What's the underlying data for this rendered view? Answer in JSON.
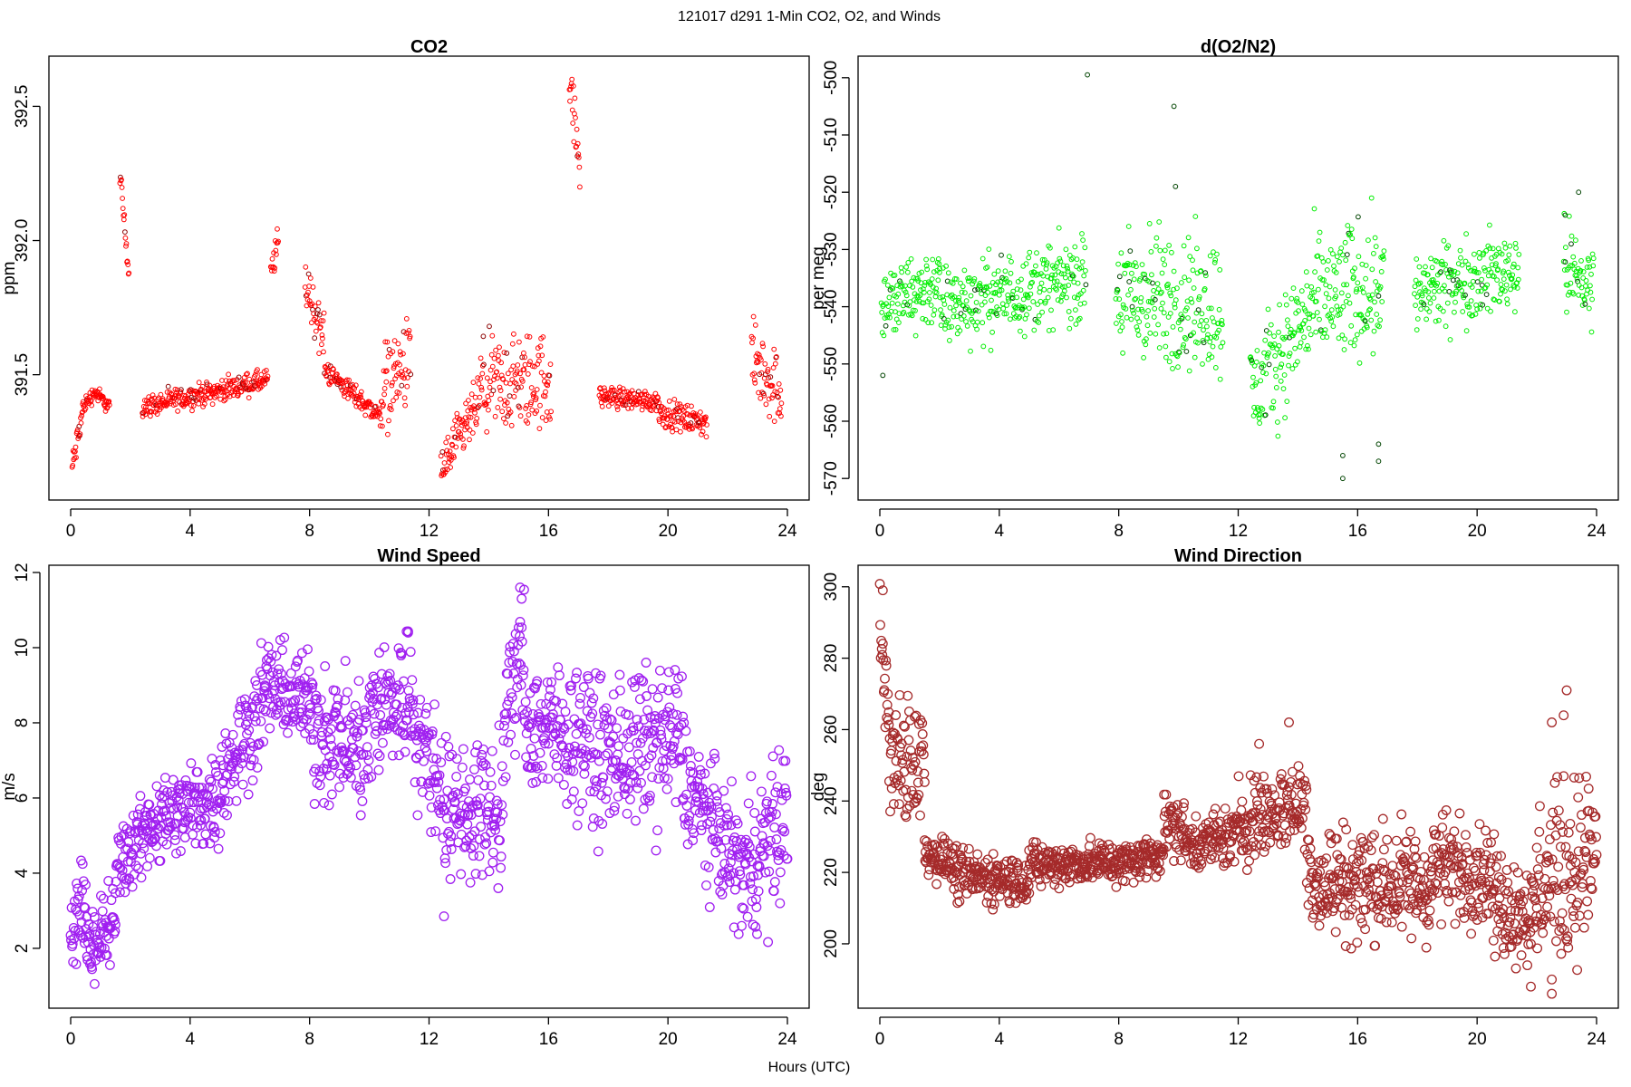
{
  "figure": {
    "title": "121017   d291   1-Min CO2, O2, and Winds",
    "xlabel": "Hours (UTC)"
  },
  "chart_data": [
    {
      "type": "scatter",
      "title": "CO2",
      "ylabel": "ppm",
      "xlim": [
        0,
        24
      ],
      "ylim": [
        391.06,
        392.66
      ],
      "x_ticks": [
        0,
        4,
        8,
        12,
        16,
        20,
        24
      ],
      "y_ticks": [
        391.5,
        392.0,
        392.5
      ],
      "y_tick_labels": [
        "391.5",
        "392.0",
        "392.5"
      ],
      "point_color": "#ff0000",
      "highlight_color": "#8b0000",
      "marker": "small-open-circle",
      "segments": [
        {
          "t0": 0.05,
          "t1": 0.4,
          "v0": 391.15,
          "v1": 391.36,
          "noise": 0.03
        },
        {
          "t0": 0.4,
          "t1": 0.85,
          "v0": 391.38,
          "v1": 391.44,
          "noise": 0.015
        },
        {
          "t0": 0.85,
          "t1": 1.3,
          "v0": 391.43,
          "v1": 391.38,
          "noise": 0.015
        },
        {
          "t0": 1.65,
          "t1": 1.95,
          "v0": 392.25,
          "v1": 391.87,
          "noise": 0.02
        },
        {
          "t0": 2.4,
          "t1": 6.6,
          "v0": 391.38,
          "v1": 391.48,
          "noise": 0.02
        },
        {
          "t0": 6.7,
          "t1": 6.95,
          "v0": 391.87,
          "v1": 392.0,
          "noise": 0.03
        },
        {
          "t0": 7.85,
          "t1": 8.5,
          "v0": 391.85,
          "v1": 391.62,
          "noise": 0.05
        },
        {
          "t0": 8.5,
          "t1": 10.4,
          "v0": 391.52,
          "v1": 391.34,
          "noise": 0.02
        },
        {
          "t0": 10.4,
          "t1": 11.4,
          "v0": 391.45,
          "v1": 391.55,
          "noise": 0.08
        },
        {
          "t0": 12.4,
          "t1": 13.7,
          "v0": 391.14,
          "v1": 391.4,
          "noise": 0.05
        },
        {
          "t0": 13.7,
          "t1": 16.1,
          "v0": 391.45,
          "v1": 391.48,
          "noise": 0.09
        },
        {
          "t0": 16.7,
          "t1": 17.05,
          "v0": 392.6,
          "v1": 392.27,
          "noise": 0.05
        },
        {
          "t0": 17.7,
          "t1": 19.7,
          "v0": 391.42,
          "v1": 391.4,
          "noise": 0.02
        },
        {
          "t0": 19.7,
          "t1": 21.3,
          "v0": 391.36,
          "v1": 391.32,
          "noise": 0.025
        },
        {
          "t0": 22.8,
          "t1": 23.8,
          "v0": 391.55,
          "v1": 391.44,
          "noise": 0.07
        }
      ]
    },
    {
      "type": "scatter",
      "title": "d(O2/N2)",
      "ylabel": "per meg",
      "xlim": [
        0,
        24
      ],
      "ylim": [
        -572.5,
        -497.5
      ],
      "x_ticks": [
        0,
        4,
        8,
        12,
        16,
        20,
        24
      ],
      "y_ticks": [
        -570,
        -560,
        -550,
        -540,
        -530,
        -520,
        -510,
        -500
      ],
      "y_tick_labels": [
        "-570",
        "-560",
        "-550",
        "-540",
        "-530",
        "-520",
        "-510",
        "-500"
      ],
      "point_color": "#00ee00",
      "highlight_color": "#004400",
      "marker": "small-open-circle",
      "segments": [
        {
          "t0": 0.05,
          "t1": 2.0,
          "v0": -540,
          "v1": -536,
          "noise": 3.5
        },
        {
          "t0": 2.0,
          "t1": 6.9,
          "v0": -540,
          "v1": -535,
          "noise": 3.5
        },
        {
          "t0": 7.9,
          "t1": 11.5,
          "v0": -538,
          "v1": -540,
          "noise": 6
        },
        {
          "t0": 12.4,
          "t1": 14.5,
          "v0": -556,
          "v1": -540,
          "noise": 5
        },
        {
          "t0": 14.5,
          "t1": 16.9,
          "v0": -540,
          "v1": -535,
          "noise": 6
        },
        {
          "t0": 17.9,
          "t1": 21.4,
          "v0": -538,
          "v1": -533,
          "noise": 3.5
        },
        {
          "t0": 22.9,
          "t1": 23.9,
          "v0": -533,
          "v1": -537,
          "noise": 4
        }
      ],
      "outliers": [
        [
          6.95,
          -499.5
        ],
        [
          9.85,
          -505
        ],
        [
          9.9,
          -519
        ],
        [
          15.5,
          -566
        ],
        [
          15.5,
          -570
        ],
        [
          16.7,
          -564
        ],
        [
          16.7,
          -567
        ],
        [
          22.95,
          -524
        ],
        [
          23.4,
          -520
        ],
        [
          0.1,
          -552
        ]
      ]
    },
    {
      "type": "scatter",
      "title": "Wind Speed",
      "ylabel": "m/s",
      "xlim": [
        0,
        24
      ],
      "ylim": [
        0.6,
        12.0
      ],
      "x_ticks": [
        0,
        4,
        8,
        12,
        16,
        20,
        24
      ],
      "y_ticks": [
        2,
        4,
        6,
        8,
        10,
        12
      ],
      "y_tick_labels": [
        "2",
        "4",
        "6",
        "8",
        "10",
        "12"
      ],
      "point_color": "#a020f0",
      "marker": "open-circle",
      "segments": [
        {
          "t0": 0.0,
          "t1": 0.5,
          "v0": 2.5,
          "v1": 3.5,
          "noise": 0.5
        },
        {
          "t0": 0.5,
          "t1": 1.0,
          "v0": 2.5,
          "v1": 1.7,
          "noise": 0.5
        },
        {
          "t0": 1.0,
          "t1": 1.5,
          "v0": 2.5,
          "v1": 2.5,
          "noise": 0.6
        },
        {
          "t0": 1.5,
          "t1": 2.5,
          "v0": 4.2,
          "v1": 5.0,
          "noise": 0.5
        },
        {
          "t0": 2.5,
          "t1": 5.0,
          "v0": 5.3,
          "v1": 6.0,
          "noise": 0.6
        },
        {
          "t0": 5.0,
          "t1": 6.5,
          "v0": 6.5,
          "v1": 8.6,
          "noise": 0.7
        },
        {
          "t0": 6.5,
          "t1": 8.0,
          "v0": 9.0,
          "v1": 8.5,
          "noise": 0.6
        },
        {
          "t0": 8.0,
          "t1": 10.0,
          "v0": 8.0,
          "v1": 7.2,
          "noise": 0.9
        },
        {
          "t0": 10.0,
          "t1": 11.5,
          "v0": 8.2,
          "v1": 8.8,
          "noise": 0.9
        },
        {
          "t0": 11.5,
          "t1": 12.5,
          "v0": 7.8,
          "v1": 6.2,
          "noise": 0.8
        },
        {
          "t0": 12.5,
          "t1": 14.5,
          "v0": 5.7,
          "v1": 5.6,
          "noise": 0.9
        },
        {
          "t0": 14.5,
          "t1": 15.2,
          "v0": 8.0,
          "v1": 10.0,
          "noise": 0.8
        },
        {
          "t0": 15.2,
          "t1": 17.5,
          "v0": 8.0,
          "v1": 7.5,
          "noise": 0.9
        },
        {
          "t0": 17.5,
          "t1": 20.5,
          "v0": 7.0,
          "v1": 7.6,
          "noise": 1.0
        },
        {
          "t0": 20.5,
          "t1": 22.5,
          "v0": 6.5,
          "v1": 4.0,
          "noise": 0.8
        },
        {
          "t0": 22.5,
          "t1": 24.0,
          "v0": 4.0,
          "v1": 5.5,
          "noise": 1.0
        }
      ],
      "outliers": [
        [
          15.05,
          11.6
        ],
        [
          15.1,
          11.3
        ],
        [
          11.3,
          10.4
        ],
        [
          12.5,
          2.85
        ],
        [
          0.8,
          1.05
        ]
      ]
    },
    {
      "type": "scatter",
      "title": "Wind Direction",
      "ylabel": "deg",
      "xlim": [
        0,
        24
      ],
      "ylim": [
        184,
        304
      ],
      "x_ticks": [
        0,
        4,
        8,
        12,
        16,
        20,
        24
      ],
      "y_ticks": [
        200,
        220,
        240,
        260,
        280,
        300
      ],
      "y_tick_labels": [
        "200",
        "220",
        "240",
        "260",
        "280",
        "300"
      ],
      "point_color": "#a52a2a",
      "marker": "open-circle",
      "segments": [
        {
          "t0": 0.0,
          "t1": 0.3,
          "v0": 292,
          "v1": 260,
          "noise": 5
        },
        {
          "t0": 0.3,
          "t1": 1.5,
          "v0": 250,
          "v1": 252,
          "noise": 9
        },
        {
          "t0": 1.5,
          "t1": 2.5,
          "v0": 226,
          "v1": 222,
          "noise": 3
        },
        {
          "t0": 2.5,
          "t1": 5.0,
          "v0": 219,
          "v1": 218,
          "noise": 3.5
        },
        {
          "t0": 5.0,
          "t1": 8.0,
          "v0": 222,
          "v1": 223,
          "noise": 3
        },
        {
          "t0": 8.0,
          "t1": 9.5,
          "v0": 222,
          "v1": 226,
          "noise": 3
        },
        {
          "t0": 9.5,
          "t1": 10.2,
          "v0": 234,
          "v1": 232,
          "noise": 4
        },
        {
          "t0": 10.2,
          "t1": 12.0,
          "v0": 228,
          "v1": 230,
          "noise": 4
        },
        {
          "t0": 12.0,
          "t1": 14.3,
          "v0": 234,
          "v1": 240,
          "noise": 6
        },
        {
          "t0": 14.3,
          "t1": 15.0,
          "v0": 222,
          "v1": 214,
          "noise": 7
        },
        {
          "t0": 15.0,
          "t1": 18.5,
          "v0": 218,
          "v1": 216,
          "noise": 8
        },
        {
          "t0": 18.5,
          "t1": 20.5,
          "v0": 222,
          "v1": 220,
          "noise": 7
        },
        {
          "t0": 20.5,
          "t1": 22.0,
          "v0": 212,
          "v1": 208,
          "noise": 7
        },
        {
          "t0": 22.0,
          "t1": 24.0,
          "v0": 216,
          "v1": 225,
          "noise": 12
        }
      ],
      "outliers": [
        [
          0.1,
          299
        ],
        [
          23.0,
          271
        ],
        [
          22.9,
          264
        ],
        [
          22.5,
          262
        ],
        [
          21.8,
          188
        ],
        [
          22.5,
          186
        ],
        [
          13.7,
          262
        ],
        [
          12.7,
          256
        ]
      ]
    }
  ]
}
